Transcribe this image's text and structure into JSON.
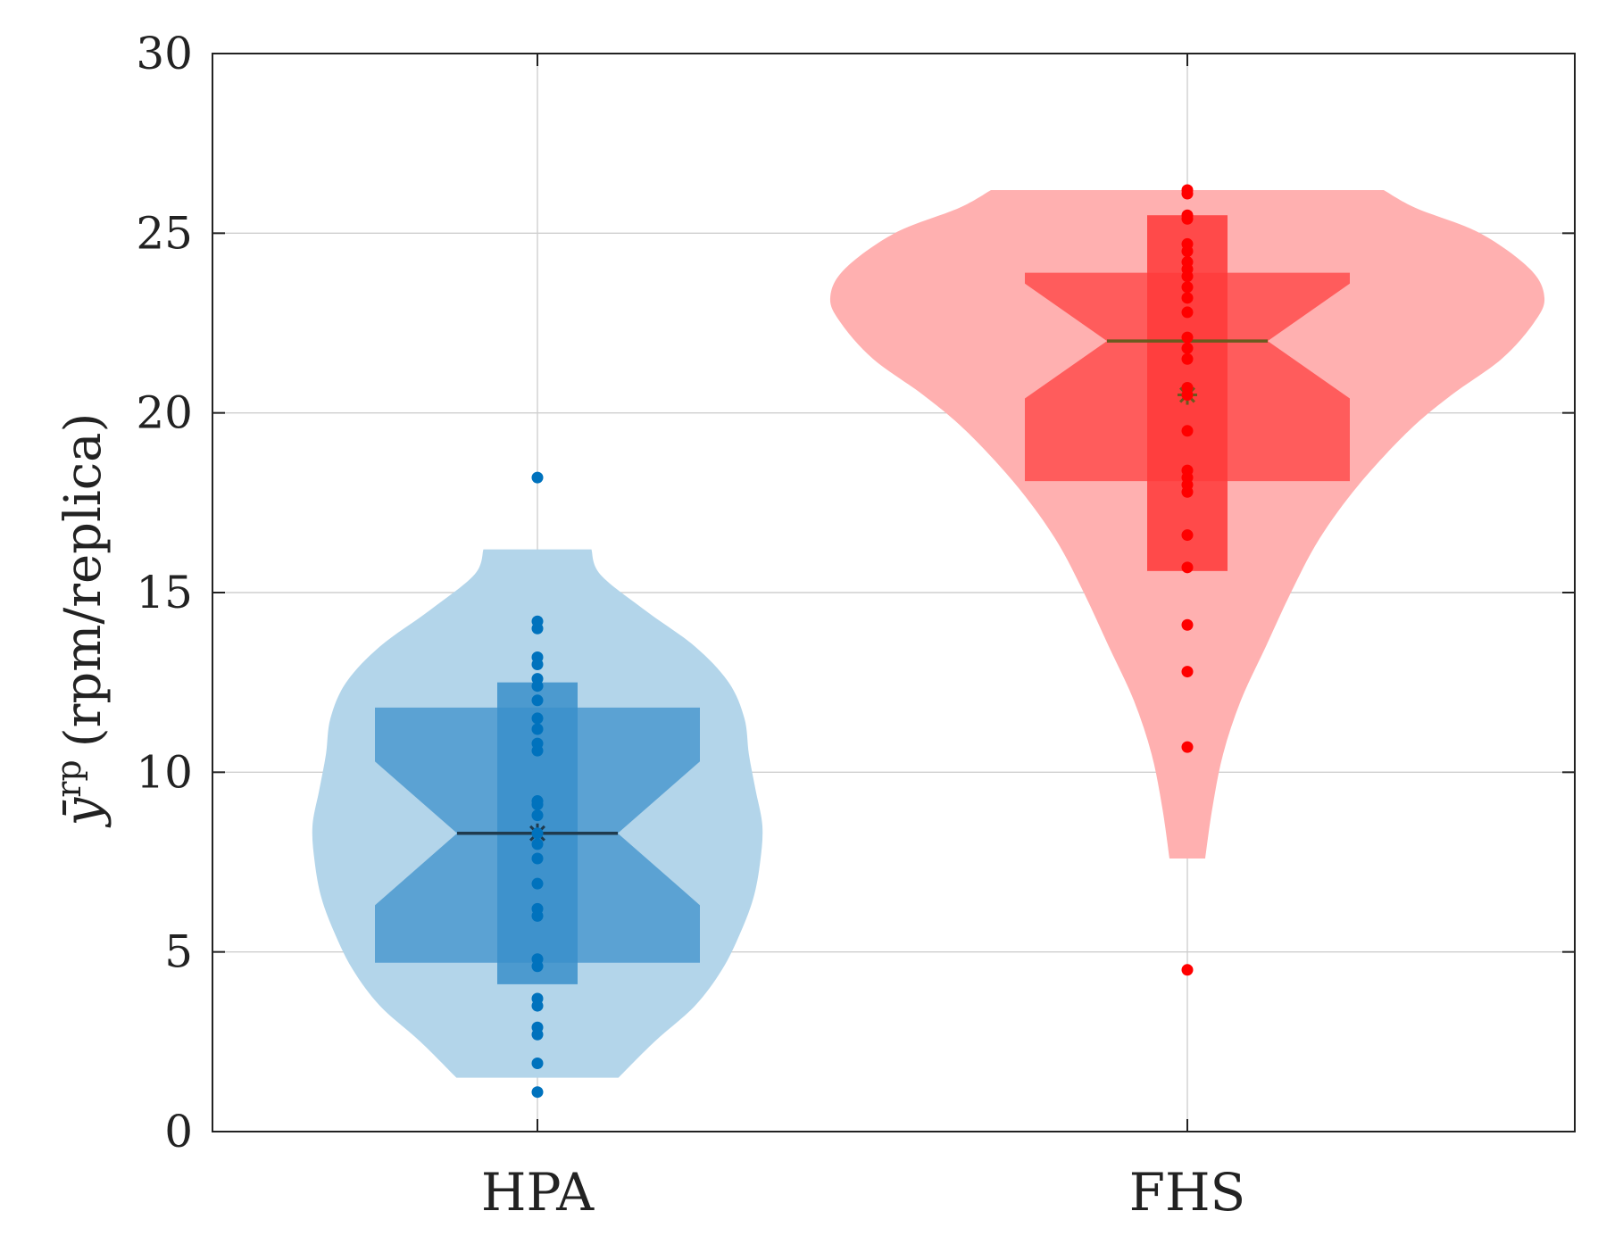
{
  "chart_data": {
    "type": "violin",
    "title": "",
    "xlabel": "",
    "ylabel": {
      "symbol": "ȳ",
      "superscript": "rp",
      "units": "(rpm/replica)"
    },
    "ylim": [
      0,
      30
    ],
    "yticks": [
      0,
      5,
      10,
      15,
      20,
      25,
      30
    ],
    "grid": true,
    "categories": [
      "HPA",
      "FHS"
    ],
    "series": [
      {
        "name": "HPA",
        "color": "#0072BD",
        "violin_color": "#B3D5EA",
        "box_color": "#5BA2D3",
        "whisker_box_color": "#3A8FCA",
        "median_color": "#1F3A4D",
        "violin_range": [
          1.5,
          16.2
        ],
        "violin_profile": [
          [
            1.5,
            0.36
          ],
          [
            2.5,
            0.52
          ],
          [
            3.5,
            0.7
          ],
          [
            4.5,
            0.82
          ],
          [
            5.5,
            0.9
          ],
          [
            6.5,
            0.96
          ],
          [
            7.5,
            0.99
          ],
          [
            8.5,
            1.0
          ],
          [
            9.5,
            0.97
          ],
          [
            10.5,
            0.94
          ],
          [
            11.5,
            0.92
          ],
          [
            12.5,
            0.85
          ],
          [
            13.5,
            0.7
          ],
          [
            14.5,
            0.48
          ],
          [
            15.5,
            0.28
          ],
          [
            16.2,
            0.24
          ]
        ],
        "q1": 4.7,
        "q3": 11.8,
        "median": 8.3,
        "mean": 8.3,
        "notch_low": 6.3,
        "notch_high": 10.3,
        "whisker_box_low": 4.1,
        "whisker_box_high": 12.5,
        "points": [
          1.1,
          1.9,
          2.7,
          2.9,
          3.5,
          3.7,
          4.6,
          4.8,
          6.0,
          6.2,
          6.9,
          7.6,
          8.0,
          8.3,
          8.8,
          9.1,
          9.2,
          10.6,
          10.8,
          11.2,
          11.5,
          12.0,
          12.4,
          12.6,
          13.0,
          13.2,
          14.0,
          14.2,
          18.2
        ]
      },
      {
        "name": "FHS",
        "color": "#FF0000",
        "violin_color": "#FFB0B0",
        "box_color": "#FF5C5C",
        "whisker_box_color": "#FF3838",
        "median_color": "#6B5A1E",
        "violin_range": [
          7.6,
          26.2
        ],
        "violin_profile": [
          [
            7.6,
            0.05
          ],
          [
            9.0,
            0.07
          ],
          [
            10.5,
            0.1
          ],
          [
            12.0,
            0.15
          ],
          [
            13.5,
            0.22
          ],
          [
            15.0,
            0.29
          ],
          [
            16.5,
            0.37
          ],
          [
            18.0,
            0.48
          ],
          [
            19.5,
            0.62
          ],
          [
            20.5,
            0.74
          ],
          [
            21.5,
            0.88
          ],
          [
            22.5,
            0.97
          ],
          [
            23.2,
            1.0
          ],
          [
            24.0,
            0.96
          ],
          [
            25.0,
            0.82
          ],
          [
            25.7,
            0.64
          ],
          [
            26.2,
            0.55
          ]
        ],
        "q1": 18.1,
        "q3": 23.9,
        "median": 22.0,
        "mean": 20.5,
        "notch_low": 20.4,
        "notch_high": 23.6,
        "whisker_box_low": 15.6,
        "whisker_box_high": 25.5,
        "points": [
          4.5,
          10.7,
          12.8,
          14.1,
          15.7,
          16.6,
          17.8,
          18.0,
          18.2,
          18.4,
          19.5,
          20.5,
          20.7,
          21.5,
          21.8,
          22.1,
          22.8,
          23.2,
          23.5,
          23.8,
          24.0,
          24.2,
          24.5,
          24.7,
          25.4,
          25.5,
          26.1,
          26.2
        ]
      }
    ]
  }
}
